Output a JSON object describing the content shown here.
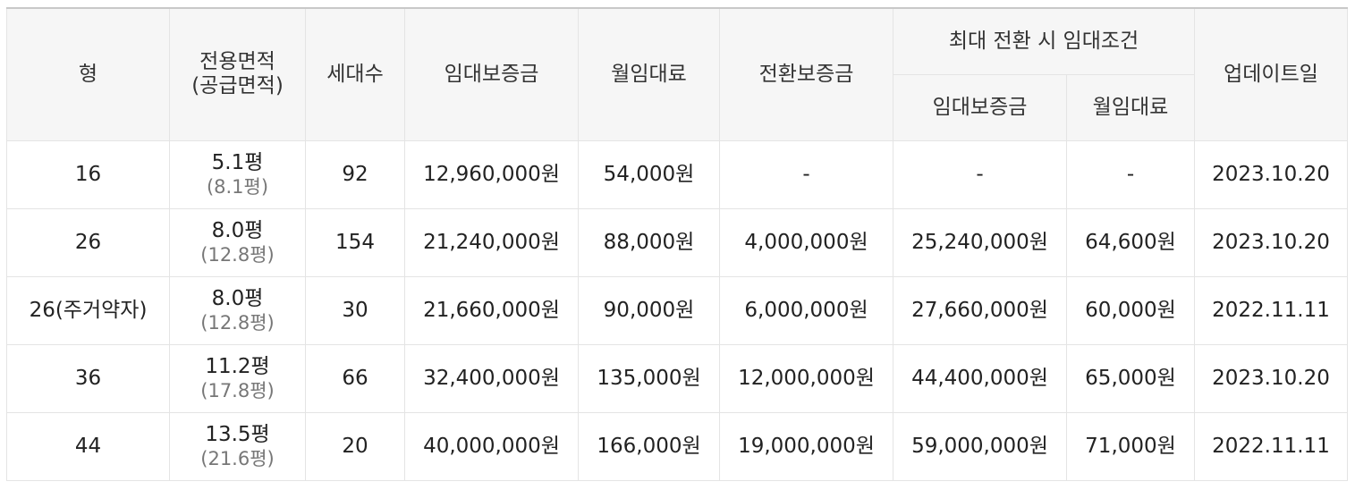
{
  "headers": {
    "type": "형",
    "area_line1": "전용면적",
    "area_line2": "(공급면적)",
    "households": "세대수",
    "deposit": "임대보증금",
    "monthly_rent": "월임대료",
    "conversion_deposit": "전환보증금",
    "max_conversion_group": "최대 전환 시 임대조건",
    "max_deposit": "임대보증금",
    "max_monthly_rent": "월임대료",
    "updated": "업데이트일"
  },
  "rows": [
    {
      "type": "16",
      "exclusive_area": "5.1평",
      "supply_area": "(8.1평)",
      "households": "92",
      "deposit": "12,960,000원",
      "monthly_rent": "54,000원",
      "conversion_deposit": "-",
      "max_deposit": "-",
      "max_monthly_rent": "-",
      "updated": "2023.10.20"
    },
    {
      "type": "26",
      "exclusive_area": "8.0평",
      "supply_area": "(12.8평)",
      "households": "154",
      "deposit": "21,240,000원",
      "monthly_rent": "88,000원",
      "conversion_deposit": "4,000,000원",
      "max_deposit": "25,240,000원",
      "max_monthly_rent": "64,600원",
      "updated": "2023.10.20"
    },
    {
      "type": "26(주거약자)",
      "exclusive_area": "8.0평",
      "supply_area": "(12.8평)",
      "households": "30",
      "deposit": "21,660,000원",
      "monthly_rent": "90,000원",
      "conversion_deposit": "6,000,000원",
      "max_deposit": "27,660,000원",
      "max_monthly_rent": "60,000원",
      "updated": "2022.11.11"
    },
    {
      "type": "36",
      "exclusive_area": "11.2평",
      "supply_area": "(17.8평)",
      "households": "66",
      "deposit": "32,400,000원",
      "monthly_rent": "135,000원",
      "conversion_deposit": "12,000,000원",
      "max_deposit": "44,400,000원",
      "max_monthly_rent": "65,000원",
      "updated": "2023.10.20"
    },
    {
      "type": "44",
      "exclusive_area": "13.5평",
      "supply_area": "(21.6평)",
      "households": "20",
      "deposit": "40,000,000원",
      "monthly_rent": "166,000원",
      "conversion_deposit": "19,000,000원",
      "max_deposit": "59,000,000원",
      "max_monthly_rent": "71,000원",
      "updated": "2022.11.11"
    }
  ]
}
